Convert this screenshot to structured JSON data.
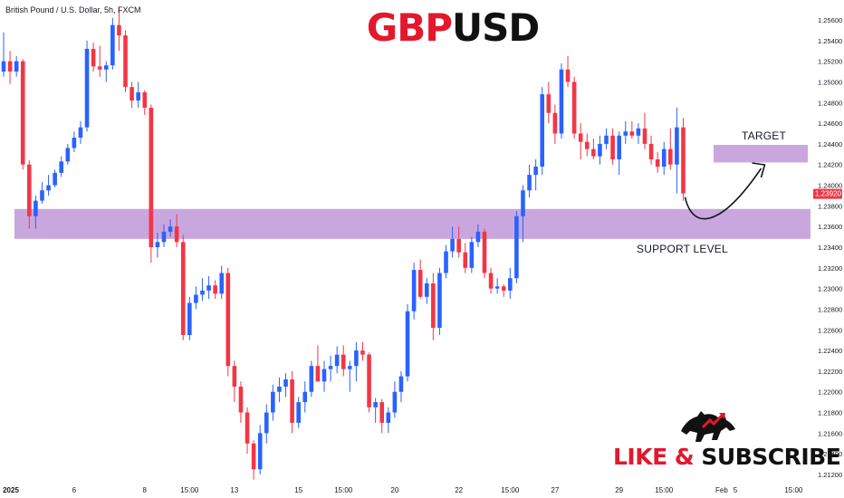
{
  "symbol": "British Pound / U.S. Dollar, 5h, FXCM",
  "title_part1": "GBP",
  "title_part2": "USD",
  "cta_part1": "LIKE & ",
  "cta_part2": "SUBSCRIBE",
  "annotations": {
    "target": "TARGET",
    "support": "SUPPORT LEVEL"
  },
  "colors": {
    "bull": "#2962ff",
    "bear": "#f23645",
    "zone": "#c9a7de",
    "price_badge": "#f23645",
    "brand_red": "#e3182d"
  },
  "icons": {
    "logo": "bull-bear-icon"
  },
  "chart_data": {
    "type": "candlestick",
    "title": "GBPUSD",
    "ylim": [
      1.21,
      1.258
    ],
    "y_ticks": [
      "1.25600",
      "1.25400",
      "1.25200",
      "1.25000",
      "1.24800",
      "1.24600",
      "1.24400",
      "1.24200",
      "1.24000",
      "1.23800",
      "1.23600",
      "1.23400",
      "1.23200",
      "1.23000",
      "1.22800",
      "1.22600",
      "1.22400",
      "1.22200",
      "1.22000",
      "1.21800",
      "1.21600",
      "1.21400",
      "1.21200"
    ],
    "x_ticks": [
      {
        "label": "2025",
        "index": 0
      },
      {
        "label": "6",
        "index": 11
      },
      {
        "label": "8",
        "index": 22
      },
      {
        "label": "15:00",
        "index": 29
      },
      {
        "label": "13",
        "index": 36
      },
      {
        "label": "15",
        "index": 46
      },
      {
        "label": "15:00",
        "index": 53
      },
      {
        "label": "20",
        "index": 61
      },
      {
        "label": "22",
        "index": 71
      },
      {
        "label": "15:00",
        "index": 79
      },
      {
        "label": "27",
        "index": 86
      },
      {
        "label": "29",
        "index": 96
      },
      {
        "label": "15:00",
        "index": 103
      },
      {
        "label": "Feb",
        "index": 112
      }
    ],
    "x_ticks_future": [
      {
        "label": "5",
        "offset": 2.5
      },
      {
        "label": "15:00",
        "offset": 5.3
      }
    ],
    "last_price": "1.23920",
    "support_zone": [
      1.2348,
      1.2377
    ],
    "target_zone": [
      1.2422,
      1.2439
    ],
    "candles": [
      [
        1.251,
        1.2548,
        1.2505,
        1.252
      ],
      [
        1.252,
        1.253,
        1.2498,
        1.251
      ],
      [
        1.251,
        1.2525,
        1.2505,
        1.252
      ],
      [
        1.252,
        1.2522,
        1.2415,
        1.242
      ],
      [
        1.242,
        1.2424,
        1.2358,
        1.237
      ],
      [
        1.237,
        1.239,
        1.2358,
        1.2385
      ],
      [
        1.2385,
        1.2403,
        1.2382,
        1.2395
      ],
      [
        1.2395,
        1.241,
        1.239,
        1.24
      ],
      [
        1.24,
        1.2415,
        1.2398,
        1.2412
      ],
      [
        1.2412,
        1.2428,
        1.2408,
        1.2423
      ],
      [
        1.2423,
        1.244,
        1.242,
        1.2436
      ],
      [
        1.2436,
        1.2452,
        1.2432,
        1.2446
      ],
      [
        1.2446,
        1.2462,
        1.244,
        1.2456
      ],
      [
        1.2456,
        1.254,
        1.2452,
        1.2532
      ],
      [
        1.2532,
        1.2538,
        1.251,
        1.2515
      ],
      [
        1.2515,
        1.2535,
        1.2505,
        1.2512
      ],
      [
        1.2512,
        1.252,
        1.25,
        1.2516
      ],
      [
        1.2516,
        1.2562,
        1.2512,
        1.2555
      ],
      [
        1.2555,
        1.2572,
        1.253,
        1.2545
      ],
      [
        1.2545,
        1.255,
        1.249,
        1.2495
      ],
      [
        1.2495,
        1.25,
        1.2475,
        1.2482
      ],
      [
        1.2482,
        1.25,
        1.2475,
        1.249
      ],
      [
        1.249,
        1.2492,
        1.2468,
        1.2475
      ],
      [
        1.2475,
        1.2478,
        1.2325,
        1.234
      ],
      [
        1.234,
        1.2354,
        1.233,
        1.2345
      ],
      [
        1.2345,
        1.2362,
        1.234,
        1.2355
      ],
      [
        1.2355,
        1.2367,
        1.235,
        1.236
      ],
      [
        1.236,
        1.2372,
        1.234,
        1.2345
      ],
      [
        1.2345,
        1.2352,
        1.225,
        1.2255
      ],
      [
        1.2255,
        1.2292,
        1.225,
        1.2286
      ],
      [
        1.2286,
        1.2302,
        1.228,
        1.2294
      ],
      [
        1.2294,
        1.231,
        1.2288,
        1.2298
      ],
      [
        1.2298,
        1.2312,
        1.229,
        1.2303
      ],
      [
        1.2303,
        1.2308,
        1.229,
        1.2295
      ],
      [
        1.2295,
        1.2322,
        1.229,
        1.2315
      ],
      [
        1.2315,
        1.232,
        1.2215,
        1.2225
      ],
      [
        1.2225,
        1.223,
        1.219,
        1.2205
      ],
      [
        1.2205,
        1.221,
        1.217,
        1.218
      ],
      [
        1.218,
        1.2185,
        1.214,
        1.215
      ],
      [
        1.215,
        1.2153,
        1.2115,
        1.2125
      ],
      [
        1.2125,
        1.2168,
        1.212,
        1.216
      ],
      [
        1.216,
        1.2188,
        1.215,
        1.218
      ],
      [
        1.218,
        1.2207,
        1.2172,
        1.22
      ],
      [
        1.22,
        1.2214,
        1.219,
        1.2205
      ],
      [
        1.2205,
        1.2218,
        1.2195,
        1.2212
      ],
      [
        1.2212,
        1.222,
        1.216,
        1.217
      ],
      [
        1.217,
        1.2195,
        1.2165,
        1.219
      ],
      [
        1.219,
        1.221,
        1.218,
        1.22
      ],
      [
        1.22,
        1.223,
        1.2195,
        1.2225
      ],
      [
        1.2225,
        1.2245,
        1.221,
        1.221
      ],
      [
        1.221,
        1.223,
        1.22,
        1.2222
      ],
      [
        1.2222,
        1.2235,
        1.221,
        1.2225
      ],
      [
        1.2225,
        1.2244,
        1.2218,
        1.2236
      ],
      [
        1.2236,
        1.2245,
        1.2215,
        1.2222
      ],
      [
        1.2222,
        1.223,
        1.22,
        1.2225
      ],
      [
        1.2225,
        1.2248,
        1.221,
        1.224
      ],
      [
        1.224,
        1.2248,
        1.223,
        1.2236
      ],
      [
        1.2236,
        1.2238,
        1.218,
        1.2185
      ],
      [
        1.2185,
        1.2194,
        1.217,
        1.219
      ],
      [
        1.219,
        1.2193,
        1.216,
        1.217
      ],
      [
        1.217,
        1.2185,
        1.216,
        1.218
      ],
      [
        1.218,
        1.221,
        1.2175,
        1.22
      ],
      [
        1.22,
        1.222,
        1.219,
        1.2215
      ],
      [
        1.2215,
        1.2285,
        1.221,
        1.2278
      ],
      [
        1.2278,
        1.2325,
        1.227,
        1.2318
      ],
      [
        1.2318,
        1.2328,
        1.229,
        1.2292
      ],
      [
        1.2292,
        1.231,
        1.2285,
        1.2305
      ],
      [
        1.2305,
        1.2315,
        1.225,
        1.2262
      ],
      [
        1.2262,
        1.232,
        1.2255,
        1.2315
      ],
      [
        1.2315,
        1.2342,
        1.231,
        1.2336
      ],
      [
        1.2336,
        1.236,
        1.233,
        1.2348
      ],
      [
        1.2348,
        1.236,
        1.233,
        1.2335
      ],
      [
        1.2335,
        1.2344,
        1.2315,
        1.232
      ],
      [
        1.232,
        1.235,
        1.2315,
        1.2345
      ],
      [
        1.2345,
        1.2362,
        1.234,
        1.2355
      ],
      [
        1.2355,
        1.2358,
        1.231,
        1.2315
      ],
      [
        1.2315,
        1.232,
        1.2295,
        1.23
      ],
      [
        1.23,
        1.231,
        1.2295,
        1.2302
      ],
      [
        1.2302,
        1.2304,
        1.2292,
        1.2298
      ],
      [
        1.2298,
        1.232,
        1.229,
        1.231
      ],
      [
        1.231,
        1.2375,
        1.2305,
        1.237
      ],
      [
        1.237,
        1.24,
        1.2345,
        1.2395
      ],
      [
        1.2395,
        1.242,
        1.2388,
        1.241
      ],
      [
        1.241,
        1.2425,
        1.2395,
        1.2418
      ],
      [
        1.2418,
        1.2495,
        1.241,
        1.2488
      ],
      [
        1.2488,
        1.25,
        1.246,
        1.247
      ],
      [
        1.247,
        1.2478,
        1.244,
        1.245
      ],
      [
        1.245,
        1.2518,
        1.2445,
        1.2512
      ],
      [
        1.2512,
        1.2525,
        1.2495,
        1.25
      ],
      [
        1.25,
        1.2505,
        1.2445,
        1.245
      ],
      [
        1.245,
        1.246,
        1.2425,
        1.2442
      ],
      [
        1.2442,
        1.245,
        1.2428,
        1.2435
      ],
      [
        1.2435,
        1.2445,
        1.2425,
        1.2428
      ],
      [
        1.2428,
        1.2448,
        1.242,
        1.244
      ],
      [
        1.244,
        1.2455,
        1.2435,
        1.2448
      ],
      [
        1.2448,
        1.2455,
        1.242,
        1.2425
      ],
      [
        1.2425,
        1.2452,
        1.241,
        1.2448
      ],
      [
        1.2448,
        1.2462,
        1.244,
        1.2452
      ],
      [
        1.2452,
        1.2462,
        1.2445,
        1.2448
      ],
      [
        1.2448,
        1.246,
        1.244,
        1.2455
      ],
      [
        1.2455,
        1.247,
        1.2435,
        1.244
      ],
      [
        1.244,
        1.2448,
        1.242,
        1.2425
      ],
      [
        1.2425,
        1.2432,
        1.2412,
        1.2418
      ],
      [
        1.2418,
        1.2442,
        1.241,
        1.2435
      ],
      [
        1.2435,
        1.2455,
        1.2415,
        1.242
      ],
      [
        1.242,
        1.2475,
        1.2392,
        1.2456
      ],
      [
        1.2456,
        1.2465,
        1.2385,
        1.2392
      ]
    ]
  }
}
